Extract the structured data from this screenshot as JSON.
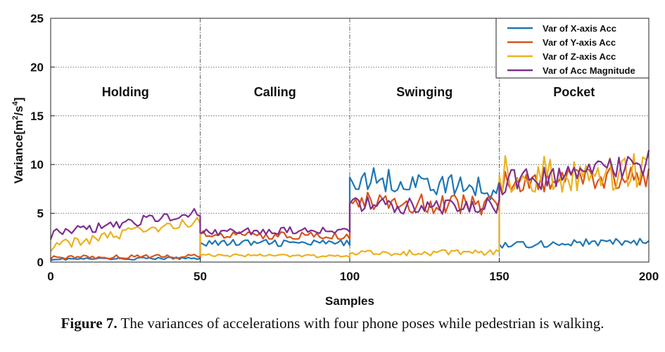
{
  "chart_data": {
    "type": "line",
    "title": "",
    "xlabel": "Samples",
    "ylabel": "Variance[m²/s⁴]",
    "ylabel_parts": {
      "base": "Variance[m",
      "exp1": "2",
      "mid": "/s",
      "exp2": "4",
      "end": "]"
    },
    "xlim": [
      0,
      200
    ],
    "ylim": [
      0,
      25
    ],
    "xticks": [
      "0",
      "50",
      "100",
      "150",
      "200"
    ],
    "yticks": [
      "0",
      "5",
      "10",
      "15",
      "20",
      "25"
    ],
    "grid": "dotted",
    "section_dividers": [
      50,
      100,
      150
    ],
    "sections": [
      {
        "label": "Holding",
        "x": 25
      },
      {
        "label": "Calling",
        "x": 75
      },
      {
        "label": "Swinging",
        "x": 125
      },
      {
        "label": "Pocket",
        "x": 175
      }
    ],
    "legend_position": "top-right",
    "series": [
      {
        "name": "Var of X-axis Acc",
        "color": "#1f77b4",
        "anchors": [
          [
            0,
            0.3
          ],
          [
            50,
            0.4
          ],
          [
            50.5,
            2.0
          ],
          [
            100,
            1.9
          ],
          [
            100.5,
            8.7
          ],
          [
            150,
            7.4
          ],
          [
            150.5,
            1.8
          ],
          [
            200,
            2.1
          ]
        ],
        "amps": [
          0.12,
          0.35,
          1.2,
          0.4
        ]
      },
      {
        "name": "Var of Y-axis Acc",
        "color": "#d95319",
        "anchors": [
          [
            0,
            0.5
          ],
          [
            50,
            0.6
          ],
          [
            50.5,
            2.8
          ],
          [
            100,
            2.6
          ],
          [
            100.5,
            6.2
          ],
          [
            150,
            5.8
          ],
          [
            150.5,
            8.3
          ],
          [
            200,
            9.0
          ]
        ],
        "amps": [
          0.2,
          0.4,
          1.0,
          1.3
        ]
      },
      {
        "name": "Var of Z-axis Acc",
        "color": "#edb120",
        "anchors": [
          [
            0,
            1.6
          ],
          [
            50,
            4.3
          ],
          [
            50.5,
            0.7
          ],
          [
            100,
            0.6
          ],
          [
            100.5,
            0.9
          ],
          [
            150,
            1.0
          ],
          [
            150.5,
            8.9
          ],
          [
            200,
            9.5
          ]
        ],
        "amps": [
          0.5,
          0.15,
          0.3,
          2.0
        ]
      },
      {
        "name": "Var of Acc Magnitude",
        "color": "#7e2f8e",
        "anchors": [
          [
            0,
            2.8
          ],
          [
            50,
            5.2
          ],
          [
            50.5,
            3.0
          ],
          [
            100,
            3.4
          ],
          [
            100.5,
            6.0
          ],
          [
            150,
            5.6
          ],
          [
            150.5,
            8.1
          ],
          [
            200,
            10.2
          ]
        ],
        "amps": [
          0.5,
          0.4,
          0.9,
          1.3
        ]
      }
    ]
  },
  "figure": {
    "caption_label": "Figure 7.",
    "caption_text": " The variances of accelerations with four phone poses while pedestrian is walking."
  }
}
